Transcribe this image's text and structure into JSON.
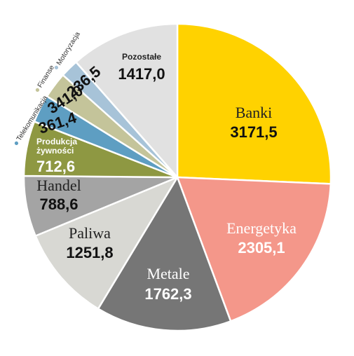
{
  "chart_data": {
    "type": "pie",
    "title": "",
    "slices": [
      {
        "label": "Banki",
        "value_text": "3171,5",
        "value": 3171.5,
        "color": "#FFD200"
      },
      {
        "label": "Energetyka",
        "value_text": "2305,1",
        "value": 2305.1,
        "color": "#F4978A"
      },
      {
        "label": "Metale",
        "value_text": "1762,3",
        "value": 1762.3,
        "color": "#767676"
      },
      {
        "label": "Paliwa",
        "value_text": "1251,8",
        "value": 1251.8,
        "color": "#D8D8D3"
      },
      {
        "label": "Handel",
        "value_text": "788,6",
        "value": 788.6,
        "color": "#A4A4A4"
      },
      {
        "label": "Produkcja żywności",
        "value_text": "712,6",
        "value": 712.6,
        "color": "#8E9842"
      },
      {
        "label": "Telekomunikacja",
        "value_text": "361,4",
        "value": 361.4,
        "color": "#5E9EC2"
      },
      {
        "label": "Finanse",
        "value_text": "341,0",
        "value": 341.0,
        "color": "#C4C49A"
      },
      {
        "label": "Motoryzacja",
        "value_text": "236,5",
        "value": 236.5,
        "color": "#A7C3D8"
      },
      {
        "label": "Pozostałe",
        "value_text": "1417,0",
        "value": 1417.0,
        "color": "#E1E1E1"
      }
    ]
  }
}
